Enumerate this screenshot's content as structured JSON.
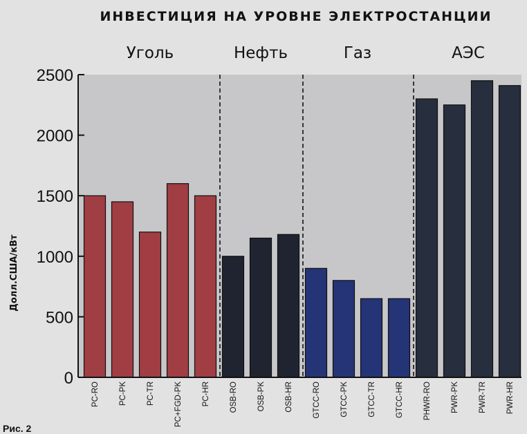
{
  "chart_data": {
    "type": "bar",
    "title": "ИНВЕСТИЦИЯ НА УРОВНЕ ЭЛЕКТРОСТАНЦИИ",
    "ylabel": "Долл.США/кВт",
    "xlabel": "",
    "ylim": [
      0,
      2500
    ],
    "yticks": [
      0,
      500,
      1000,
      1500,
      2000,
      2500
    ],
    "grid": false,
    "groups": [
      {
        "name": "Уголь",
        "color": "#a03e44",
        "categories": [
          "PC-RO",
          "PC-PK",
          "PC-TR",
          "PC+FGD-PK",
          "PC-HR"
        ],
        "values": [
          1500,
          1450,
          1200,
          1600,
          1500
        ]
      },
      {
        "name": "Нефть",
        "color": "#1f2430",
        "categories": [
          "OSB-RO",
          "OSB-PK",
          "OSB-HR"
        ],
        "values": [
          1000,
          1150,
          1180
        ]
      },
      {
        "name": "Газ",
        "color": "#253377",
        "categories": [
          "GTCC-RO",
          "GTCC-PK",
          "GTCC-TR",
          "GTCC-HR"
        ],
        "values": [
          900,
          800,
          650,
          650
        ]
      },
      {
        "name": "АЭС",
        "color": "#272e3d",
        "categories": [
          "PHWR-RO",
          "PWR-PK",
          "PWR-TR",
          "PWR-HR"
        ],
        "values": [
          2300,
          2250,
          2450,
          2410
        ]
      }
    ]
  },
  "caption": "Рис. 2",
  "colors": {
    "plot_background": "#c7c7c9",
    "page_background": "#e2e2e2",
    "axis": "#111111"
  }
}
